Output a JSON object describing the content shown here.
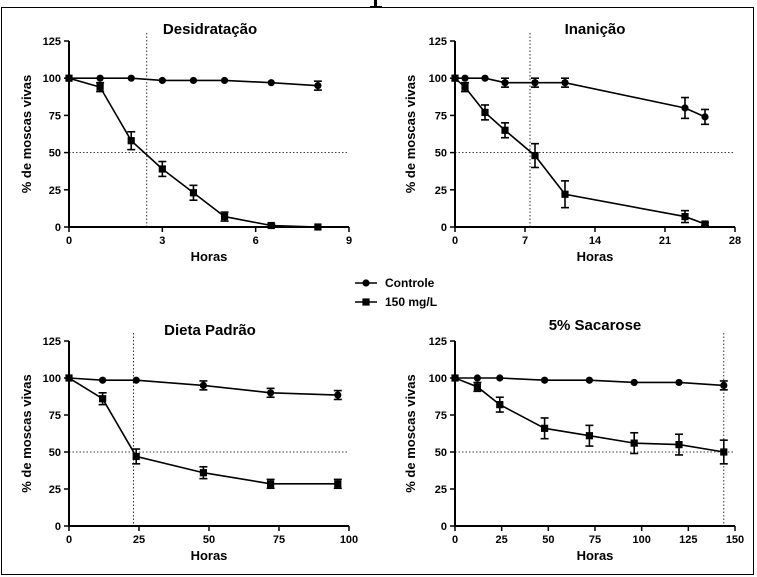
{
  "legend": {
    "entries": [
      {
        "label": "Controle",
        "marker": "circle"
      },
      {
        "label": "150 mg/L",
        "marker": "square"
      }
    ]
  },
  "chart_data": [
    {
      "type": "line",
      "title": "Desidratação",
      "xlabel": "Horas",
      "ylabel": "% de moscas vivas",
      "xlim": [
        0,
        9
      ],
      "ylim": [
        0,
        125
      ],
      "xticks": [
        0,
        3,
        6,
        9
      ],
      "yticks": [
        0,
        25,
        50,
        75,
        100,
        125
      ],
      "reference_lines": {
        "x": 2.5,
        "y": 50
      },
      "series": [
        {
          "name": "Controle",
          "points": [
            [
              0,
              100
            ],
            [
              1,
              100
            ],
            [
              2,
              100
            ],
            [
              3,
              98.5
            ],
            [
              4,
              98.5
            ],
            [
              5,
              98.5
            ],
            [
              6.5,
              97
            ],
            [
              8,
              95
            ]
          ],
          "errors": [
            0,
            0,
            0,
            0,
            0,
            0,
            0,
            3
          ]
        },
        {
          "name": "150 mg/L",
          "points": [
            [
              0,
              100
            ],
            [
              1,
              94
            ],
            [
              2,
              58
            ],
            [
              3,
              39
            ],
            [
              4,
              23
            ],
            [
              5,
              7
            ],
            [
              6.5,
              1
            ],
            [
              8,
              0
            ]
          ],
          "errors": [
            0,
            3,
            6,
            5,
            5,
            3,
            1,
            0
          ]
        }
      ]
    },
    {
      "type": "line",
      "title": "Inanição",
      "xlabel": "Horas",
      "ylabel": "% de moscas vivas",
      "xlim": [
        0,
        28
      ],
      "ylim": [
        0,
        125
      ],
      "xticks": [
        0,
        7,
        14,
        21,
        28
      ],
      "yticks": [
        0,
        25,
        50,
        75,
        100,
        125
      ],
      "reference_lines": {
        "x": 7.5,
        "y": 50
      },
      "series": [
        {
          "name": "Controle",
          "points": [
            [
              0,
              100
            ],
            [
              1,
              100
            ],
            [
              3,
              100
            ],
            [
              5,
              97
            ],
            [
              8,
              97
            ],
            [
              11,
              97
            ],
            [
              23,
              80
            ],
            [
              25,
              74
            ]
          ],
          "errors": [
            0,
            0,
            0,
            3,
            3,
            3,
            7,
            5
          ]
        },
        {
          "name": "150 mg/L",
          "points": [
            [
              0,
              100
            ],
            [
              1,
              94
            ],
            [
              3,
              77
            ],
            [
              5,
              65
            ],
            [
              8,
              48
            ],
            [
              11,
              22
            ],
            [
              23,
              7
            ],
            [
              25,
              2
            ]
          ],
          "errors": [
            0,
            3,
            5,
            5,
            8,
            9,
            4,
            1
          ]
        }
      ]
    },
    {
      "type": "line",
      "title": "Dieta Padrão",
      "xlabel": "Horas",
      "ylabel": "% de moscas vivas",
      "xlim": [
        0,
        100
      ],
      "ylim": [
        0,
        125
      ],
      "xticks": [
        0,
        25,
        50,
        75,
        100
      ],
      "yticks": [
        0,
        25,
        50,
        75,
        100,
        125
      ],
      "reference_lines": {
        "x": 23,
        "y": 50
      },
      "series": [
        {
          "name": "Controle",
          "points": [
            [
              0,
              100
            ],
            [
              12,
              98.5
            ],
            [
              24,
              98.5
            ],
            [
              48,
              95
            ],
            [
              72,
              90
            ],
            [
              96,
              88.5
            ]
          ],
          "errors": [
            0,
            0,
            0,
            3,
            3,
            3
          ]
        },
        {
          "name": "150 mg/L",
          "points": [
            [
              0,
              100
            ],
            [
              12,
              86
            ],
            [
              24,
              47
            ],
            [
              48,
              36
            ],
            [
              72,
              28.5
            ],
            [
              96,
              28.5
            ]
          ],
          "errors": [
            0,
            4,
            5,
            4,
            3,
            3
          ]
        }
      ]
    },
    {
      "type": "line",
      "title": "5% Sacarose",
      "xlabel": "Horas",
      "ylabel": "% de moscas vivas",
      "xlim": [
        0,
        150
      ],
      "ylim": [
        0,
        125
      ],
      "xticks": [
        0,
        25,
        50,
        75,
        100,
        125,
        150
      ],
      "yticks": [
        0,
        25,
        50,
        75,
        100,
        125
      ],
      "reference_lines": {
        "x": 144,
        "y": 50
      },
      "series": [
        {
          "name": "Controle",
          "points": [
            [
              0,
              100
            ],
            [
              12,
              100
            ],
            [
              24,
              100
            ],
            [
              48,
              98.5
            ],
            [
              72,
              98.5
            ],
            [
              96,
              97
            ],
            [
              120,
              97
            ],
            [
              144,
              95
            ]
          ],
          "errors": [
            0,
            0,
            0,
            0,
            0,
            0,
            0,
            3
          ]
        },
        {
          "name": "150 mg/L",
          "points": [
            [
              0,
              100
            ],
            [
              12,
              94
            ],
            [
              24,
              82
            ],
            [
              48,
              66
            ],
            [
              72,
              61
            ],
            [
              96,
              56
            ],
            [
              120,
              55
            ],
            [
              144,
              50
            ]
          ],
          "errors": [
            0,
            3,
            5,
            7,
            7,
            7,
            7,
            8
          ]
        }
      ]
    }
  ]
}
